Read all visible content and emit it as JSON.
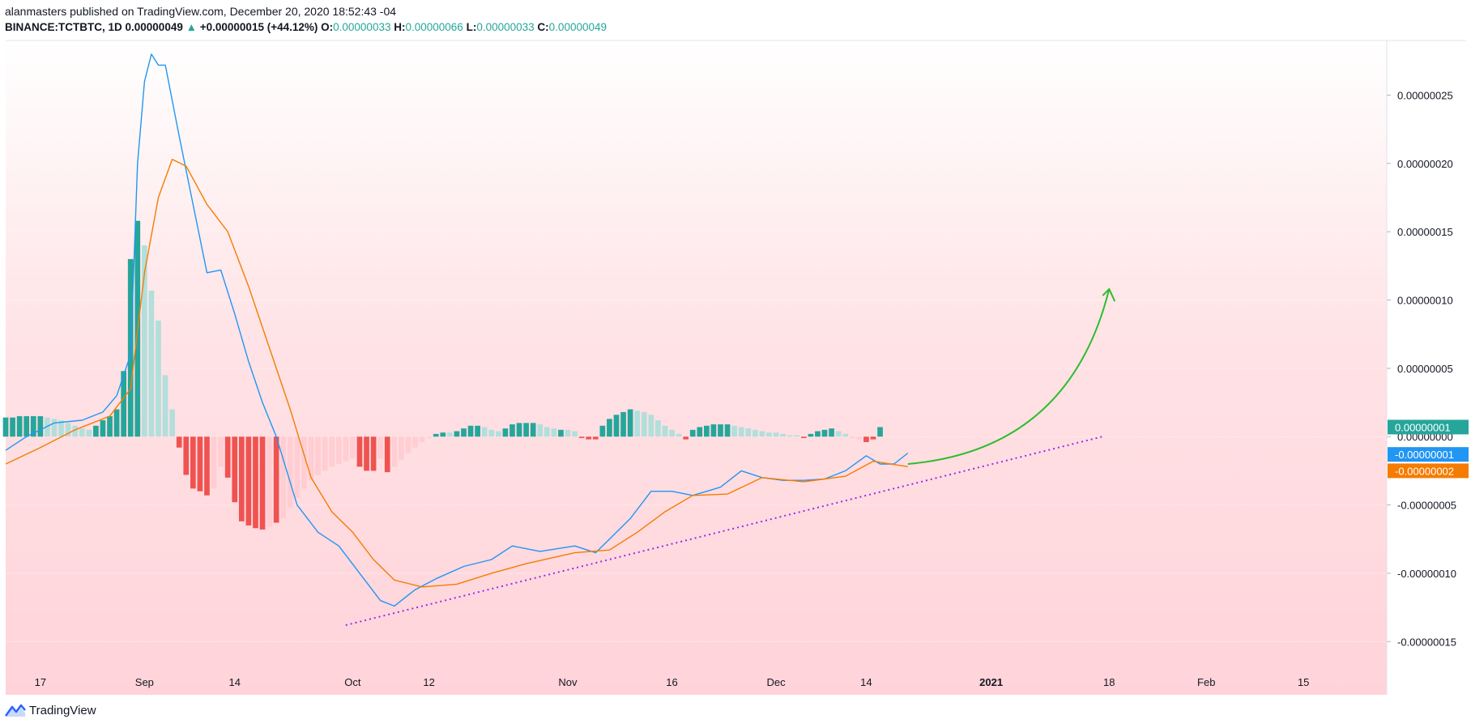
{
  "header": {
    "publisher_line": "alanmasters published on TradingView.com, December 20, 2020 18:52:43 -04",
    "symbol": "BINANCE:TCTBTC, 1D",
    "last": "0.00000049",
    "change": "+0.00000015 (+44.12%)",
    "o_label": "O:",
    "o_value": "0.00000033",
    "h_label": "H:",
    "h_value": "0.00000066",
    "l_label": "L:",
    "l_value": "0.00000033",
    "c_label": "C:",
    "c_value": "0.00000049"
  },
  "footer": {
    "brand": "TradingView"
  },
  "colors": {
    "macd": "#2196f3",
    "signal": "#f57c00",
    "hist_up_strong": "#26a69a",
    "hist_up_weak": "#b2dfdb",
    "hist_down_strong": "#ef5350",
    "hist_down_weak": "#ffcdd2",
    "trendline": "#9c27f0",
    "arrow": "#2ebd2e"
  },
  "chart_data": {
    "type": "line",
    "indicator": "MACD",
    "y_unit": "BTC",
    "ylim": [
      -1.7e-07,
      2.9e-07
    ],
    "y_ticks": [
      {
        "value": 2.5e-07,
        "label": "0.00000025"
      },
      {
        "value": 2e-07,
        "label": "0.00000020"
      },
      {
        "value": 1.5e-07,
        "label": "0.00000015"
      },
      {
        "value": 1e-07,
        "label": "0.00000010"
      },
      {
        "value": 5e-08,
        "label": "0.00000005"
      },
      {
        "value": 0,
        "label": "0.00000000"
      },
      {
        "value": -5e-08,
        "label": "-0.00000005"
      },
      {
        "value": -1e-07,
        "label": "-0.00000010"
      },
      {
        "value": -1.5e-07,
        "label": "-0.00000015"
      }
    ],
    "x_ticks": [
      {
        "date": "2020-08-17",
        "label": "17",
        "bold": false
      },
      {
        "date": "2020-09-01",
        "label": "Sep",
        "bold": false
      },
      {
        "date": "2020-09-14",
        "label": "14",
        "bold": false
      },
      {
        "date": "2020-10-01",
        "label": "Oct",
        "bold": false
      },
      {
        "date": "2020-10-12",
        "label": "12",
        "bold": false
      },
      {
        "date": "2020-11-01",
        "label": "Nov",
        "bold": false
      },
      {
        "date": "2020-11-16",
        "label": "16",
        "bold": false
      },
      {
        "date": "2020-12-01",
        "label": "Dec",
        "bold": false
      },
      {
        "date": "2020-12-14",
        "label": "14",
        "bold": false
      },
      {
        "date": "2021-01-01",
        "label": "2021",
        "bold": true
      },
      {
        "date": "2021-01-18",
        "label": "18",
        "bold": false
      },
      {
        "date": "2021-02-01",
        "label": "Feb",
        "bold": false
      },
      {
        "date": "2021-02-15",
        "label": "15",
        "bold": false
      }
    ],
    "x_start": "2020-08-12",
    "x_end": "2021-02-27",
    "series": [
      {
        "key": "macd",
        "points": [
          [
            "2020-08-12",
            -1e-08
          ],
          [
            "2020-08-15",
            0.0
          ],
          [
            "2020-08-19",
            1e-08
          ],
          [
            "2020-08-23",
            1.2e-08
          ],
          [
            "2020-08-26",
            1.8e-08
          ],
          [
            "2020-08-28",
            3e-08
          ],
          [
            "2020-08-30",
            6e-08
          ],
          [
            "2020-08-31",
            2e-07
          ],
          [
            "2020-09-01",
            2.6e-07
          ],
          [
            "2020-09-02",
            2.8e-07
          ],
          [
            "2020-09-03",
            2.72e-07
          ],
          [
            "2020-09-04",
            2.72e-07
          ],
          [
            "2020-09-06",
            2.2e-07
          ],
          [
            "2020-09-08",
            1.7e-07
          ],
          [
            "2020-09-10",
            1.2e-07
          ],
          [
            "2020-09-12",
            1.22e-07
          ],
          [
            "2020-09-14",
            9e-08
          ],
          [
            "2020-09-16",
            5.5e-08
          ],
          [
            "2020-09-18",
            2.5e-08
          ],
          [
            "2020-09-20",
            -0.0
          ],
          [
            "2020-09-23",
            -5e-08
          ],
          [
            "2020-09-26",
            -7e-08
          ],
          [
            "2020-09-29",
            -8e-08
          ],
          [
            "2020-10-02",
            -1e-07
          ],
          [
            "2020-10-05",
            -1.2e-07
          ],
          [
            "2020-10-07",
            -1.24e-07
          ],
          [
            "2020-10-10",
            -1.12e-07
          ],
          [
            "2020-10-13",
            -1.04e-07
          ],
          [
            "2020-10-17",
            -9.5e-08
          ],
          [
            "2020-10-21",
            -9e-08
          ],
          [
            "2020-10-24",
            -8e-08
          ],
          [
            "2020-10-28",
            -8.4e-08
          ],
          [
            "2020-11-02",
            -8e-08
          ],
          [
            "2020-11-05",
            -8.5e-08
          ],
          [
            "2020-11-07",
            -7.5e-08
          ],
          [
            "2020-11-10",
            -6e-08
          ],
          [
            "2020-11-13",
            -4e-08
          ],
          [
            "2020-11-16",
            -4e-08
          ],
          [
            "2020-11-19",
            -4.3e-08
          ],
          [
            "2020-11-21",
            -4e-08
          ],
          [
            "2020-11-23",
            -3.7e-08
          ],
          [
            "2020-11-26",
            -2.5e-08
          ],
          [
            "2020-11-29",
            -3e-08
          ],
          [
            "2020-12-02",
            -3.2e-08
          ],
          [
            "2020-12-05",
            -3.2e-08
          ],
          [
            "2020-12-08",
            -3.1e-08
          ],
          [
            "2020-12-11",
            -2.5e-08
          ],
          [
            "2020-12-14",
            -1.4e-08
          ],
          [
            "2020-12-16",
            -2e-08
          ],
          [
            "2020-12-18",
            -2e-08
          ],
          [
            "2020-12-20",
            -1.2e-08
          ]
        ]
      },
      {
        "key": "signal",
        "points": [
          [
            "2020-08-12",
            -2e-08
          ],
          [
            "2020-08-17",
            -8e-09
          ],
          [
            "2020-08-22",
            5e-09
          ],
          [
            "2020-08-27",
            1.5e-08
          ],
          [
            "2020-08-30",
            3.5e-08
          ],
          [
            "2020-09-01",
            1.2e-07
          ],
          [
            "2020-09-03",
            1.75e-07
          ],
          [
            "2020-09-05",
            2.03e-07
          ],
          [
            "2020-09-07",
            1.98e-07
          ],
          [
            "2020-09-10",
            1.7e-07
          ],
          [
            "2020-09-13",
            1.5e-07
          ],
          [
            "2020-09-16",
            1.1e-07
          ],
          [
            "2020-09-19",
            6.5e-08
          ],
          [
            "2020-09-22",
            2e-08
          ],
          [
            "2020-09-25",
            -3e-08
          ],
          [
            "2020-09-28",
            -5.5e-08
          ],
          [
            "2020-10-01",
            -7e-08
          ],
          [
            "2020-10-04",
            -9e-08
          ],
          [
            "2020-10-07",
            -1.05e-07
          ],
          [
            "2020-10-11",
            -1.1e-07
          ],
          [
            "2020-10-16",
            -1.08e-07
          ],
          [
            "2020-10-21",
            -1e-07
          ],
          [
            "2020-10-26",
            -9.3e-08
          ],
          [
            "2020-11-02",
            -8.5e-08
          ],
          [
            "2020-11-07",
            -8.3e-08
          ],
          [
            "2020-11-11",
            -7e-08
          ],
          [
            "2020-11-15",
            -5.5e-08
          ],
          [
            "2020-11-19",
            -4.3e-08
          ],
          [
            "2020-11-24",
            -4.2e-08
          ],
          [
            "2020-11-29",
            -3e-08
          ],
          [
            "2020-12-05",
            -3.3e-08
          ],
          [
            "2020-12-11",
            -2.9e-08
          ],
          [
            "2020-12-15",
            -1.8e-08
          ],
          [
            "2020-12-20",
            -2.2e-08
          ]
        ]
      }
    ],
    "histogram": [
      [
        "2020-08-12",
        1.4e-08,
        "up_strong"
      ],
      [
        "2020-08-13",
        1.4e-08,
        "up_strong"
      ],
      [
        "2020-08-14",
        1.5e-08,
        "up_strong"
      ],
      [
        "2020-08-15",
        1.5e-08,
        "up_strong"
      ],
      [
        "2020-08-16",
        1.5e-08,
        "up_strong"
      ],
      [
        "2020-08-17",
        1.5e-08,
        "up_strong"
      ],
      [
        "2020-08-18",
        1.4e-08,
        "up_weak"
      ],
      [
        "2020-08-19",
        1.3e-08,
        "up_weak"
      ],
      [
        "2020-08-20",
        1.2e-08,
        "up_weak"
      ],
      [
        "2020-08-21",
        1e-08,
        "up_weak"
      ],
      [
        "2020-08-22",
        8e-09,
        "up_weak"
      ],
      [
        "2020-08-23",
        6e-09,
        "up_weak"
      ],
      [
        "2020-08-24",
        5e-09,
        "up_weak"
      ],
      [
        "2020-08-25",
        8e-09,
        "up_strong"
      ],
      [
        "2020-08-26",
        1.2e-08,
        "up_strong"
      ],
      [
        "2020-08-27",
        1.5e-08,
        "up_strong"
      ],
      [
        "2020-08-28",
        2e-08,
        "up_strong"
      ],
      [
        "2020-08-29",
        4.8e-08,
        "up_strong"
      ],
      [
        "2020-08-30",
        1.3e-07,
        "up_strong"
      ],
      [
        "2020-08-31",
        1.58e-07,
        "up_strong"
      ],
      [
        "2020-09-01",
        1.4e-07,
        "up_weak"
      ],
      [
        "2020-09-02",
        1.07e-07,
        "up_weak"
      ],
      [
        "2020-09-03",
        8.5e-08,
        "up_weak"
      ],
      [
        "2020-09-04",
        4.5e-08,
        "up_weak"
      ],
      [
        "2020-09-05",
        2e-08,
        "up_weak"
      ],
      [
        "2020-09-06",
        -8e-09,
        "down_strong"
      ],
      [
        "2020-09-07",
        -2.8e-08,
        "down_strong"
      ],
      [
        "2020-09-08",
        -3.8e-08,
        "down_strong"
      ],
      [
        "2020-09-09",
        -4e-08,
        "down_strong"
      ],
      [
        "2020-09-10",
        -4.3e-08,
        "down_strong"
      ],
      [
        "2020-09-11",
        -3.8e-08,
        "down_weak"
      ],
      [
        "2020-09-12",
        -2.2e-08,
        "down_weak"
      ],
      [
        "2020-09-13",
        -3e-08,
        "down_strong"
      ],
      [
        "2020-09-14",
        -4.8e-08,
        "down_strong"
      ],
      [
        "2020-09-15",
        -6.2e-08,
        "down_strong"
      ],
      [
        "2020-09-16",
        -6.5e-08,
        "down_strong"
      ],
      [
        "2020-09-17",
        -6.7e-08,
        "down_strong"
      ],
      [
        "2020-09-18",
        -6.8e-08,
        "down_strong"
      ],
      [
        "2020-09-19",
        -6.6e-08,
        "down_weak"
      ],
      [
        "2020-09-20",
        -6.3e-08,
        "down_strong"
      ],
      [
        "2020-09-21",
        -6e-08,
        "down_weak"
      ],
      [
        "2020-09-22",
        -5.2e-08,
        "down_weak"
      ],
      [
        "2020-09-23",
        -4.5e-08,
        "down_weak"
      ],
      [
        "2020-09-24",
        -3.8e-08,
        "down_weak"
      ],
      [
        "2020-09-25",
        -3.2e-08,
        "down_weak"
      ],
      [
        "2020-09-26",
        -2.8e-08,
        "down_weak"
      ],
      [
        "2020-09-27",
        -2.5e-08,
        "down_weak"
      ],
      [
        "2020-09-28",
        -2.2e-08,
        "down_weak"
      ],
      [
        "2020-09-29",
        -2e-08,
        "down_weak"
      ],
      [
        "2020-09-30",
        -1.8e-08,
        "down_weak"
      ],
      [
        "2020-10-01",
        -1.6e-08,
        "down_weak"
      ],
      [
        "2020-10-02",
        -2.2e-08,
        "down_strong"
      ],
      [
        "2020-10-03",
        -2.5e-08,
        "down_strong"
      ],
      [
        "2020-10-04",
        -2.5e-08,
        "down_strong"
      ],
      [
        "2020-10-05",
        -1.6e-08,
        "down_weak"
      ],
      [
        "2020-10-06",
        -2.6e-08,
        "down_strong"
      ],
      [
        "2020-10-07",
        -2.2e-08,
        "down_weak"
      ],
      [
        "2020-10-08",
        -1.7e-08,
        "down_weak"
      ],
      [
        "2020-10-09",
        -1.2e-08,
        "down_weak"
      ],
      [
        "2020-10-10",
        -8e-09,
        "down_weak"
      ],
      [
        "2020-10-11",
        -4e-09,
        "down_weak"
      ],
      [
        "2020-10-12",
        -1e-09,
        "down_weak"
      ],
      [
        "2020-10-13",
        2e-09,
        "up_strong"
      ],
      [
        "2020-10-14",
        3e-09,
        "up_strong"
      ],
      [
        "2020-10-15",
        3e-09,
        "up_weak"
      ],
      [
        "2020-10-16",
        4e-09,
        "up_strong"
      ],
      [
        "2020-10-17",
        6e-09,
        "up_strong"
      ],
      [
        "2020-10-18",
        8e-09,
        "up_strong"
      ],
      [
        "2020-10-19",
        8e-09,
        "up_strong"
      ],
      [
        "2020-10-20",
        7e-09,
        "up_weak"
      ],
      [
        "2020-10-21",
        5e-09,
        "up_weak"
      ],
      [
        "2020-10-22",
        4e-09,
        "up_weak"
      ],
      [
        "2020-10-23",
        6e-09,
        "up_strong"
      ],
      [
        "2020-10-24",
        9e-09,
        "up_strong"
      ],
      [
        "2020-10-25",
        1e-08,
        "up_strong"
      ],
      [
        "2020-10-26",
        1e-08,
        "up_strong"
      ],
      [
        "2020-10-27",
        1e-08,
        "up_strong"
      ],
      [
        "2020-10-28",
        9e-09,
        "up_weak"
      ],
      [
        "2020-10-29",
        7e-09,
        "up_weak"
      ],
      [
        "2020-10-30",
        6e-09,
        "up_weak"
      ],
      [
        "2020-10-31",
        5e-09,
        "up_strong"
      ],
      [
        "2020-11-01",
        5e-09,
        "up_weak"
      ],
      [
        "2020-11-02",
        4e-09,
        "up_weak"
      ],
      [
        "2020-11-03",
        -1e-09,
        "down_strong"
      ],
      [
        "2020-11-04",
        -2e-09,
        "down_strong"
      ],
      [
        "2020-11-05",
        -2e-09,
        "down_strong"
      ],
      [
        "2020-11-06",
        8e-09,
        "up_strong"
      ],
      [
        "2020-11-07",
        1.3e-08,
        "up_strong"
      ],
      [
        "2020-11-08",
        1.6e-08,
        "up_strong"
      ],
      [
        "2020-11-09",
        1.8e-08,
        "up_strong"
      ],
      [
        "2020-11-10",
        2e-08,
        "up_strong"
      ],
      [
        "2020-11-11",
        1.9e-08,
        "up_weak"
      ],
      [
        "2020-11-12",
        1.8e-08,
        "up_weak"
      ],
      [
        "2020-11-13",
        1.6e-08,
        "up_weak"
      ],
      [
        "2020-11-14",
        1.2e-08,
        "up_weak"
      ],
      [
        "2020-11-15",
        8e-09,
        "up_weak"
      ],
      [
        "2020-11-16",
        5e-09,
        "up_weak"
      ],
      [
        "2020-11-17",
        2e-09,
        "up_weak"
      ],
      [
        "2020-11-18",
        -2e-09,
        "down_strong"
      ],
      [
        "2020-11-19",
        5e-09,
        "up_strong"
      ],
      [
        "2020-11-20",
        7e-09,
        "up_strong"
      ],
      [
        "2020-11-21",
        8e-09,
        "up_strong"
      ],
      [
        "2020-11-22",
        9e-09,
        "up_strong"
      ],
      [
        "2020-11-23",
        9e-09,
        "up_strong"
      ],
      [
        "2020-11-24",
        9e-09,
        "up_strong"
      ],
      [
        "2020-11-25",
        8e-09,
        "up_weak"
      ],
      [
        "2020-11-26",
        7e-09,
        "up_weak"
      ],
      [
        "2020-11-27",
        6e-09,
        "up_weak"
      ],
      [
        "2020-11-28",
        5e-09,
        "up_weak"
      ],
      [
        "2020-11-29",
        4e-09,
        "up_weak"
      ],
      [
        "2020-11-30",
        3e-09,
        "up_weak"
      ],
      [
        "2020-12-01",
        3e-09,
        "up_weak"
      ],
      [
        "2020-12-02",
        2e-09,
        "up_weak"
      ],
      [
        "2020-12-03",
        1e-09,
        "up_weak"
      ],
      [
        "2020-12-04",
        1e-09,
        "up_weak"
      ],
      [
        "2020-12-05",
        -1e-09,
        "down_strong"
      ],
      [
        "2020-12-06",
        2e-09,
        "up_strong"
      ],
      [
        "2020-12-07",
        4e-09,
        "up_strong"
      ],
      [
        "2020-12-08",
        5e-09,
        "up_strong"
      ],
      [
        "2020-12-09",
        6e-09,
        "up_strong"
      ],
      [
        "2020-12-10",
        4e-09,
        "up_weak"
      ],
      [
        "2020-12-11",
        2e-09,
        "up_weak"
      ],
      [
        "2020-12-12",
        -1e-09,
        "down_weak"
      ],
      [
        "2020-12-13",
        -2e-09,
        "down_weak"
      ],
      [
        "2020-12-14",
        -4e-09,
        "down_strong"
      ],
      [
        "2020-12-15",
        -2e-09,
        "down_strong"
      ],
      [
        "2020-12-16",
        7e-09,
        "up_strong"
      ]
    ],
    "annotations": {
      "trendline": {
        "from": [
          "2020-09-30",
          -1.38e-07
        ],
        "to": [
          "2021-01-17",
          -0.0
        ]
      },
      "arrow": {
        "from": [
          "2020-12-20",
          -2e-08
        ],
        "to": [
          "2021-01-18",
          1.08e-07
        ]
      }
    },
    "price_labels": [
      {
        "key": "hist",
        "value": 7e-09,
        "text": "0.00000001",
        "color": "#26a69a"
      },
      {
        "key": "macd",
        "value": -1.3e-08,
        "text": "-0.00000001",
        "color": "#2196f3"
      },
      {
        "key": "signal",
        "value": -2.5e-08,
        "text": "-0.00000002",
        "color": "#f57c00"
      }
    ]
  }
}
